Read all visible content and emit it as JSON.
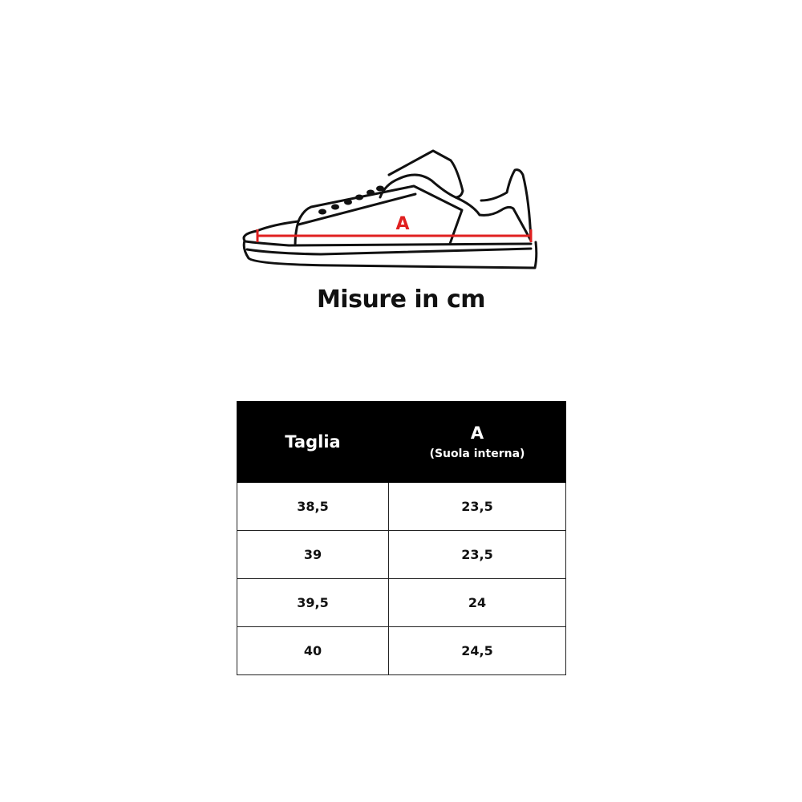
{
  "diagram": {
    "measure_label": "A",
    "measure_color": "#e02020"
  },
  "title": "Misure in cm",
  "table": {
    "headers": {
      "size": "Taglia",
      "a": "A",
      "a_sub": "(Suola interna)"
    },
    "rows": [
      {
        "size": "38,5",
        "a": "23,5"
      },
      {
        "size": "39",
        "a": "23,5"
      },
      {
        "size": "39,5",
        "a": "24"
      },
      {
        "size": "40",
        "a": "24,5"
      }
    ]
  }
}
